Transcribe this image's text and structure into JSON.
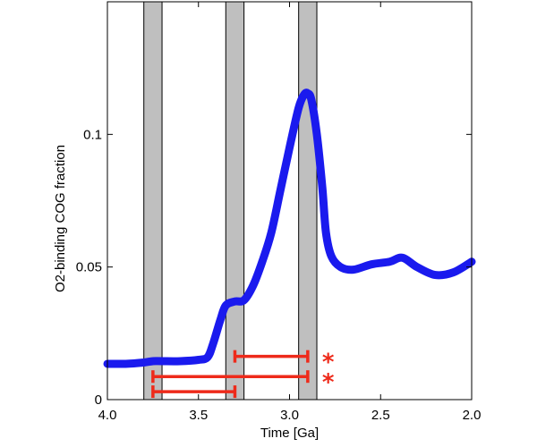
{
  "chart_data": {
    "type": "line",
    "title": "",
    "xlabel": "Time [Ga]",
    "ylabel": "O2-binding COG fraction",
    "xlim": [
      4.0,
      2.0
    ],
    "ylim": [
      0,
      0.15
    ],
    "x_reversed": true,
    "x_ticks": [
      "4.0",
      "3.5",
      "3.0",
      "2.5",
      "2.0"
    ],
    "y_ticks": [
      "0",
      "0.05",
      "0.1"
    ],
    "grid": false,
    "legend": "none",
    "series": [
      {
        "color": "#1a1aee",
        "x": [
          4.0,
          3.9,
          3.8,
          3.75,
          3.7,
          3.6,
          3.5,
          3.45,
          3.42,
          3.38,
          3.35,
          3.3,
          3.25,
          3.2,
          3.15,
          3.1,
          3.05,
          3.0,
          2.95,
          2.92,
          2.9,
          2.88,
          2.85,
          2.82,
          2.8,
          2.77,
          2.72,
          2.65,
          2.55,
          2.45,
          2.38,
          2.3,
          2.2,
          2.1,
          2.0
        ],
        "y": [
          0.0135,
          0.0135,
          0.014,
          0.0145,
          0.0145,
          0.0145,
          0.015,
          0.016,
          0.021,
          0.03,
          0.0355,
          0.037,
          0.0375,
          0.043,
          0.052,
          0.063,
          0.079,
          0.095,
          0.11,
          0.115,
          0.1155,
          0.113,
          0.1,
          0.08,
          0.063,
          0.054,
          0.05,
          0.049,
          0.051,
          0.052,
          0.0535,
          0.05,
          0.047,
          0.048,
          0.052
        ]
      }
    ],
    "shaded_bands": [
      {
        "from": 3.8,
        "to": 3.7
      },
      {
        "from": 3.35,
        "to": 3.25
      },
      {
        "from": 2.95,
        "to": 2.85
      }
    ],
    "intervals": [
      {
        "from": 3.3,
        "to": 2.9,
        "y": 0.0163,
        "marker": "*"
      },
      {
        "from": 3.75,
        "to": 2.9,
        "y": 0.0087,
        "marker": "*"
      },
      {
        "from": 3.75,
        "to": 3.3,
        "y": 0.003,
        "marker": ""
      }
    ],
    "colors": {
      "line": "#1a1aee",
      "band": "#bfbfbf",
      "interval": "#ee2a1a"
    }
  }
}
